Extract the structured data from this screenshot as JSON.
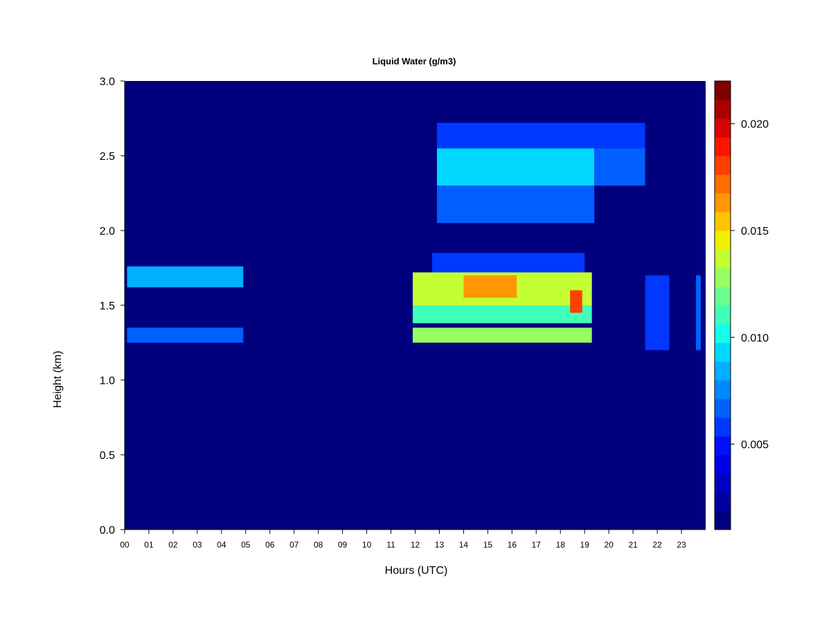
{
  "chart_data": {
    "type": "heatmap",
    "title": "Liquid Water (g/m3)",
    "xlabel": "Hours (UTC)",
    "ylabel": "Height (km)",
    "xlim": [
      0,
      24
    ],
    "ylim": [
      0,
      3.0
    ],
    "x_ticks": [
      "00",
      "01",
      "02",
      "03",
      "04",
      "05",
      "06",
      "07",
      "08",
      "09",
      "10",
      "11",
      "12",
      "13",
      "14",
      "15",
      "16",
      "17",
      "18",
      "19",
      "20",
      "21",
      "22",
      "23"
    ],
    "y_ticks": [
      "0.0",
      "0.5",
      "1.0",
      "1.5",
      "2.0",
      "2.5",
      "3.0"
    ],
    "colorbar": {
      "range": [
        0.001,
        0.022
      ],
      "ticks": [
        {
          "value": 0.005,
          "label": "0.005"
        },
        {
          "value": 0.01,
          "label": "0.010"
        },
        {
          "value": 0.015,
          "label": "0.015"
        },
        {
          "value": 0.02,
          "label": "0.020"
        }
      ],
      "colors": [
        "#00007f",
        "#0000a0",
        "#0000c4",
        "#0000e8",
        "#0010ff",
        "#0038ff",
        "#0060ff",
        "#0088ff",
        "#00b0ff",
        "#00d8ff",
        "#14ffe8",
        "#40ffb8",
        "#6cff8c",
        "#98ff60",
        "#c4ff34",
        "#f0f000",
        "#ffc400",
        "#ff9800",
        "#ff6c00",
        "#ff4000",
        "#ff1400",
        "#d80000",
        "#a80000",
        "#7f0000"
      ]
    },
    "background_value": 0.0012,
    "cloud_regions": [
      {
        "x": [
          0.1,
          4.9
        ],
        "y": [
          1.62,
          1.76
        ],
        "value": 0.008
      },
      {
        "x": [
          0.1,
          4.9
        ],
        "y": [
          1.25,
          1.35
        ],
        "value": 0.007
      },
      {
        "x": [
          11.9,
          19.3
        ],
        "y": [
          1.5,
          1.72
        ],
        "value": 0.0135
      },
      {
        "x": [
          11.9,
          19.3
        ],
        "y": [
          1.38,
          1.5
        ],
        "value": 0.011
      },
      {
        "x": [
          12.7,
          19.0
        ],
        "y": [
          1.72,
          1.85
        ],
        "value": 0.006
      },
      {
        "x": [
          11.9,
          19.3
        ],
        "y": [
          1.25,
          1.35
        ],
        "value": 0.0125
      },
      {
        "x": [
          14.0,
          16.2
        ],
        "y": [
          1.55,
          1.7
        ],
        "value": 0.016
      },
      {
        "x": [
          18.4,
          18.9
        ],
        "y": [
          1.45,
          1.6
        ],
        "value": 0.018
      },
      {
        "x": [
          12.9,
          19.4
        ],
        "y": [
          2.3,
          2.55
        ],
        "value": 0.0095
      },
      {
        "x": [
          12.9,
          19.4
        ],
        "y": [
          2.05,
          2.3
        ],
        "value": 0.007
      },
      {
        "x": [
          12.9,
          21.5
        ],
        "y": [
          2.55,
          2.72
        ],
        "value": 0.006
      },
      {
        "x": [
          19.4,
          21.5
        ],
        "y": [
          2.3,
          2.55
        ],
        "value": 0.007
      },
      {
        "x": [
          21.5,
          22.5
        ],
        "y": [
          1.2,
          1.7
        ],
        "value": 0.006
      },
      {
        "x": [
          23.6,
          23.8
        ],
        "y": [
          1.2,
          1.7
        ],
        "value": 0.007
      }
    ]
  }
}
